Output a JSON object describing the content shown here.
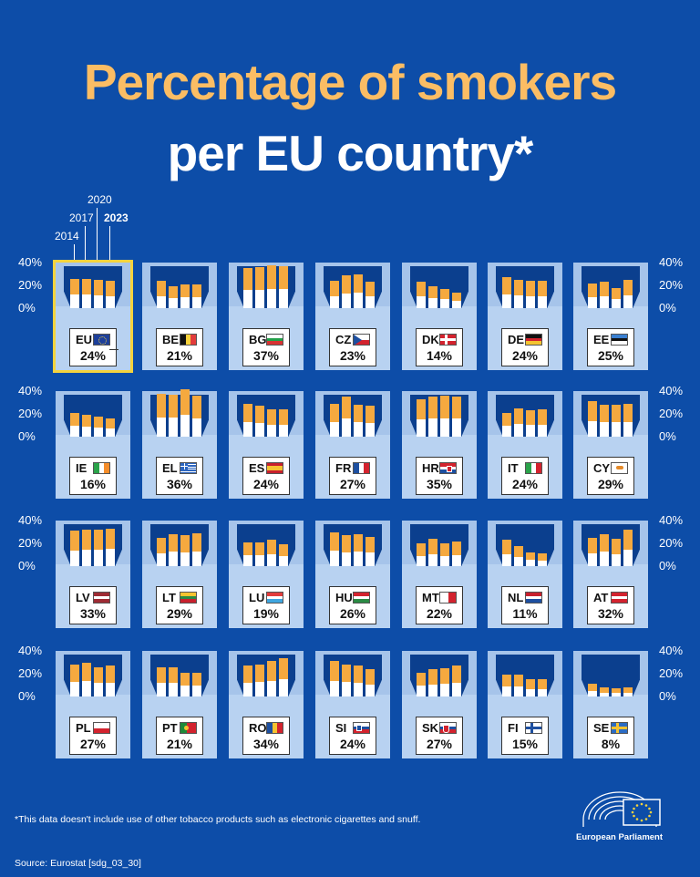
{
  "title_line1": "Percentage of smokers",
  "title_line2": "per EU country*",
  "year_labels": [
    "2014",
    "2017",
    "2020",
    "2023"
  ],
  "axis_ticks": [
    "40%",
    "20%",
    "0%"
  ],
  "footnote": "*This data doesn't include use of other tobacco products such as electronic cigarettes and snuff.",
  "source": "Source: Eurostat [sdg_03_30]",
  "logo_text": "European Parliament",
  "colors": {
    "background": "#0d4da8",
    "title_accent": "#fbbd64",
    "filter": "#f5a93f",
    "highlight": "#f4d33e"
  },
  "chart_data": {
    "type": "bar",
    "title": "Percentage of smokers per EU country*",
    "series_years": [
      "2014",
      "2017",
      "2020",
      "2023"
    ],
    "ylim": [
      0,
      40
    ],
    "unit": "%",
    "countries": [
      {
        "code": "EU",
        "pct": "24%",
        "values": [
          26,
          26,
          25,
          24
        ],
        "flag": "eu-flag"
      },
      {
        "code": "BE",
        "pct": "21%",
        "values": [
          24,
          19,
          21,
          21
        ],
        "flag": "be-flag"
      },
      {
        "code": "BG",
        "pct": "37%",
        "values": [
          35,
          36,
          38,
          37
        ],
        "flag": "bg-flag"
      },
      {
        "code": "CZ",
        "pct": "23%",
        "values": [
          24,
          29,
          30,
          23
        ],
        "flag": "cz-flag"
      },
      {
        "code": "DK",
        "pct": "14%",
        "values": [
          23,
          19,
          17,
          14
        ],
        "flag": "dk-flag"
      },
      {
        "code": "DE",
        "pct": "24%",
        "values": [
          27,
          25,
          24,
          24
        ],
        "flag": "de-flag"
      },
      {
        "code": "EE",
        "pct": "25%",
        "values": [
          22,
          23,
          18,
          25
        ],
        "flag": "ee-flag"
      },
      {
        "code": "IE",
        "pct": "16%",
        "values": [
          21,
          19,
          18,
          16
        ],
        "flag": "ie-flag"
      },
      {
        "code": "EL",
        "pct": "36%",
        "values": [
          38,
          37,
          42,
          36
        ],
        "flag": "el-flag"
      },
      {
        "code": "ES",
        "pct": "24%",
        "values": [
          29,
          27,
          24,
          24
        ],
        "flag": "es-flag"
      },
      {
        "code": "FR",
        "pct": "27%",
        "values": [
          29,
          35,
          28,
          27
        ],
        "flag": "fr-flag"
      },
      {
        "code": "HR",
        "pct": "35%",
        "values": [
          33,
          35,
          36,
          35
        ],
        "flag": "hr-flag"
      },
      {
        "code": "IT",
        "pct": "24%",
        "values": [
          21,
          25,
          23,
          24
        ],
        "flag": "it-flag"
      },
      {
        "code": "CY",
        "pct": "29%",
        "values": [
          31,
          28,
          28,
          29
        ],
        "flag": "cy-flag"
      },
      {
        "code": "LV",
        "pct": "33%",
        "values": [
          31,
          32,
          32,
          33
        ],
        "flag": "lv-flag"
      },
      {
        "code": "LT",
        "pct": "29%",
        "values": [
          25,
          28,
          27,
          29
        ],
        "flag": "lt-flag"
      },
      {
        "code": "LU",
        "pct": "19%",
        "values": [
          21,
          21,
          23,
          19
        ],
        "flag": "lu-flag"
      },
      {
        "code": "HU",
        "pct": "26%",
        "values": [
          30,
          27,
          28,
          26
        ],
        "flag": "hu-flag"
      },
      {
        "code": "MT",
        "pct": "22%",
        "values": [
          20,
          24,
          20,
          22
        ],
        "flag": "mt-flag"
      },
      {
        "code": "NL",
        "pct": "11%",
        "values": [
          23,
          18,
          12,
          11
        ],
        "flag": "nl-flag"
      },
      {
        "code": "AT",
        "pct": "32%",
        "values": [
          25,
          28,
          24,
          32
        ],
        "flag": "at-flag"
      },
      {
        "code": "PL",
        "pct": "27%",
        "values": [
          28,
          30,
          26,
          27
        ],
        "flag": "pl-flag"
      },
      {
        "code": "PT",
        "pct": "21%",
        "values": [
          26,
          26,
          21,
          21
        ],
        "flag": "pt-flag"
      },
      {
        "code": "RO",
        "pct": "34%",
        "values": [
          27,
          28,
          31,
          34
        ],
        "flag": "ro-flag"
      },
      {
        "code": "SI",
        "pct": "24%",
        "values": [
          31,
          28,
          27,
          24
        ],
        "flag": "si-flag"
      },
      {
        "code": "SK",
        "pct": "27%",
        "values": [
          21,
          24,
          25,
          27
        ],
        "flag": "sk-flag"
      },
      {
        "code": "FI",
        "pct": "15%",
        "values": [
          19,
          19,
          15,
          15
        ],
        "flag": "fi-flag"
      },
      {
        "code": "SE",
        "pct": "8%",
        "values": [
          11,
          8,
          7,
          8
        ],
        "flag": "se-flag"
      }
    ]
  }
}
